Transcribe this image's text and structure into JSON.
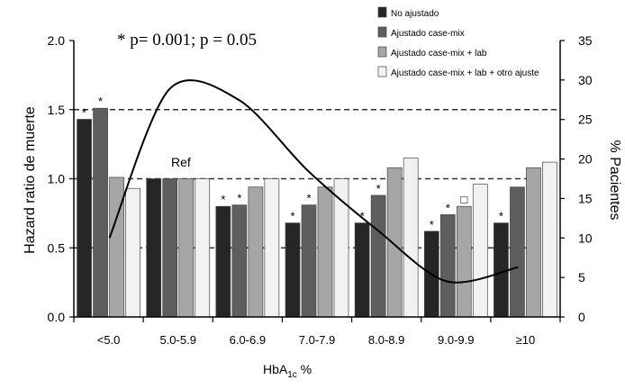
{
  "chart_data": {
    "type": "bar",
    "annotation": "* p= 0.001;   p = 0.05",
    "categories": [
      "<5.0",
      "5.0-5.9",
      "6.0-6.9",
      "7.0-7.9",
      "8.0-8.9",
      "9.0-9.9",
      "≥10"
    ],
    "xlabel_main": "HbA",
    "xlabel_sub": "1c",
    "xlabel_suffix": " %",
    "ylabel": "Hazard ratio de muerte",
    "y2label": "% Pacientes",
    "ylim": [
      0,
      2.0
    ],
    "yticks": [
      "0.0",
      "0.5",
      "1.0",
      "1.5",
      "2.0"
    ],
    "y2lim": [
      0,
      35
    ],
    "y2ticks": [
      "0",
      "5",
      "10",
      "15",
      "20",
      "25",
      "30",
      "35"
    ],
    "reference_lines": [
      0.5,
      1.0,
      1.5
    ],
    "ref_label": "Ref",
    "series": [
      {
        "name": "No ajustado",
        "color": "#262626",
        "values": [
          1.43,
          1.0,
          0.8,
          0.68,
          0.68,
          0.62,
          0.68
        ],
        "marks": [
          "*",
          "",
          "*",
          "*",
          "*",
          "*",
          "*"
        ]
      },
      {
        "name": "Ajustado case-mix",
        "color": "#5e5e5e",
        "values": [
          1.51,
          1.0,
          0.81,
          0.81,
          0.88,
          0.74,
          0.94
        ],
        "marks": [
          "*",
          "",
          "*",
          "*",
          "*",
          "*",
          ""
        ]
      },
      {
        "name": "Ajustado case-mix + lab",
        "color": "#a6a6a6",
        "values": [
          1.01,
          1.0,
          0.94,
          0.94,
          1.08,
          0.8,
          1.08
        ],
        "marks": [
          "",
          "",
          "",
          "",
          "",
          "□",
          ""
        ]
      },
      {
        "name": "Ajustado case-mix + lab + otro ajuste",
        "color": "#f2f2f2",
        "values": [
          0.93,
          1.0,
          1.0,
          1.0,
          1.15,
          0.96,
          1.12
        ],
        "marks": [
          "",
          "",
          "",
          "",
          "",
          "",
          ""
        ]
      }
    ],
    "line_series": {
      "name": "% Pacientes",
      "axis": "right",
      "x": [
        "<5.0",
        "5.0-5.9",
        "6.0-6.9",
        "7.0-7.9",
        "8.0-8.9",
        "9.0-9.9",
        "≥10"
      ],
      "values": [
        10.0,
        28.8,
        27.5,
        18.5,
        11.0,
        4.5,
        6.3
      ]
    },
    "legend_position": "top-right",
    "grid": false
  }
}
